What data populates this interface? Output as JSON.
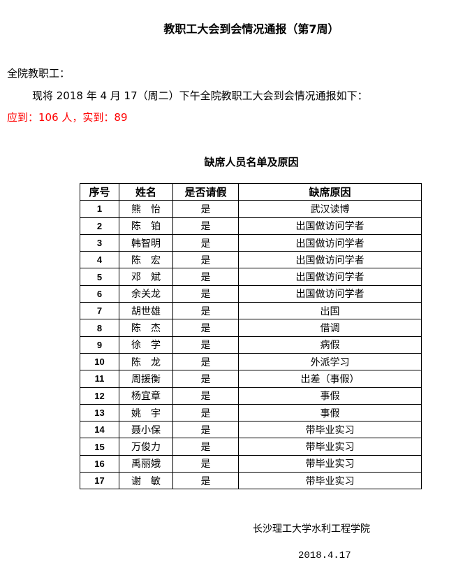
{
  "title": "教职工大会到会情况通报（第7周）",
  "greeting": "全院教职工：",
  "paragraph": "现将 2018 年 4 月 17（周二）下午全院教职工大会到会情况通报如下：",
  "attendance": "应到：106 人，实到：89",
  "attendance_color": "#ff0000",
  "subtitle": "缺席人员名单及原因",
  "table": {
    "headers": [
      "序号",
      "姓名",
      "是否请假",
      "缺席原因"
    ],
    "rows": [
      [
        "1",
        "熊　怡",
        "是",
        "武汉读博"
      ],
      [
        "2",
        "陈　铂",
        "是",
        "出国做访问学者"
      ],
      [
        "3",
        "韩智明",
        "是",
        "出国做访问学者"
      ],
      [
        "4",
        "陈　宏",
        "是",
        "出国做访问学者"
      ],
      [
        "5",
        "邓　斌",
        "是",
        "出国做访问学者"
      ],
      [
        "6",
        "余关龙",
        "是",
        "出国做访问学者"
      ],
      [
        "7",
        "胡世雄",
        "是",
        "出国"
      ],
      [
        "8",
        "陈　杰",
        "是",
        "借调"
      ],
      [
        "9",
        "徐　学",
        "是",
        "病假"
      ],
      [
        "10",
        "陈　龙",
        "是",
        "外派学习"
      ],
      [
        "11",
        "周援衡",
        "是",
        "出差（事假）"
      ],
      [
        "12",
        "杨宜章",
        "是",
        "事假"
      ],
      [
        "13",
        "姚　宇",
        "是",
        "事假"
      ],
      [
        "14",
        "聂小保",
        "是",
        "带毕业实习"
      ],
      [
        "15",
        "万俊力",
        "是",
        "带毕业实习"
      ],
      [
        "16",
        "禹丽娥",
        "是",
        "带毕业实习"
      ],
      [
        "17",
        "谢　敏",
        "是",
        "带毕业实习"
      ]
    ]
  },
  "footer": {
    "org": "长沙理工大学水利工程学院",
    "date": "2018.4.17"
  }
}
